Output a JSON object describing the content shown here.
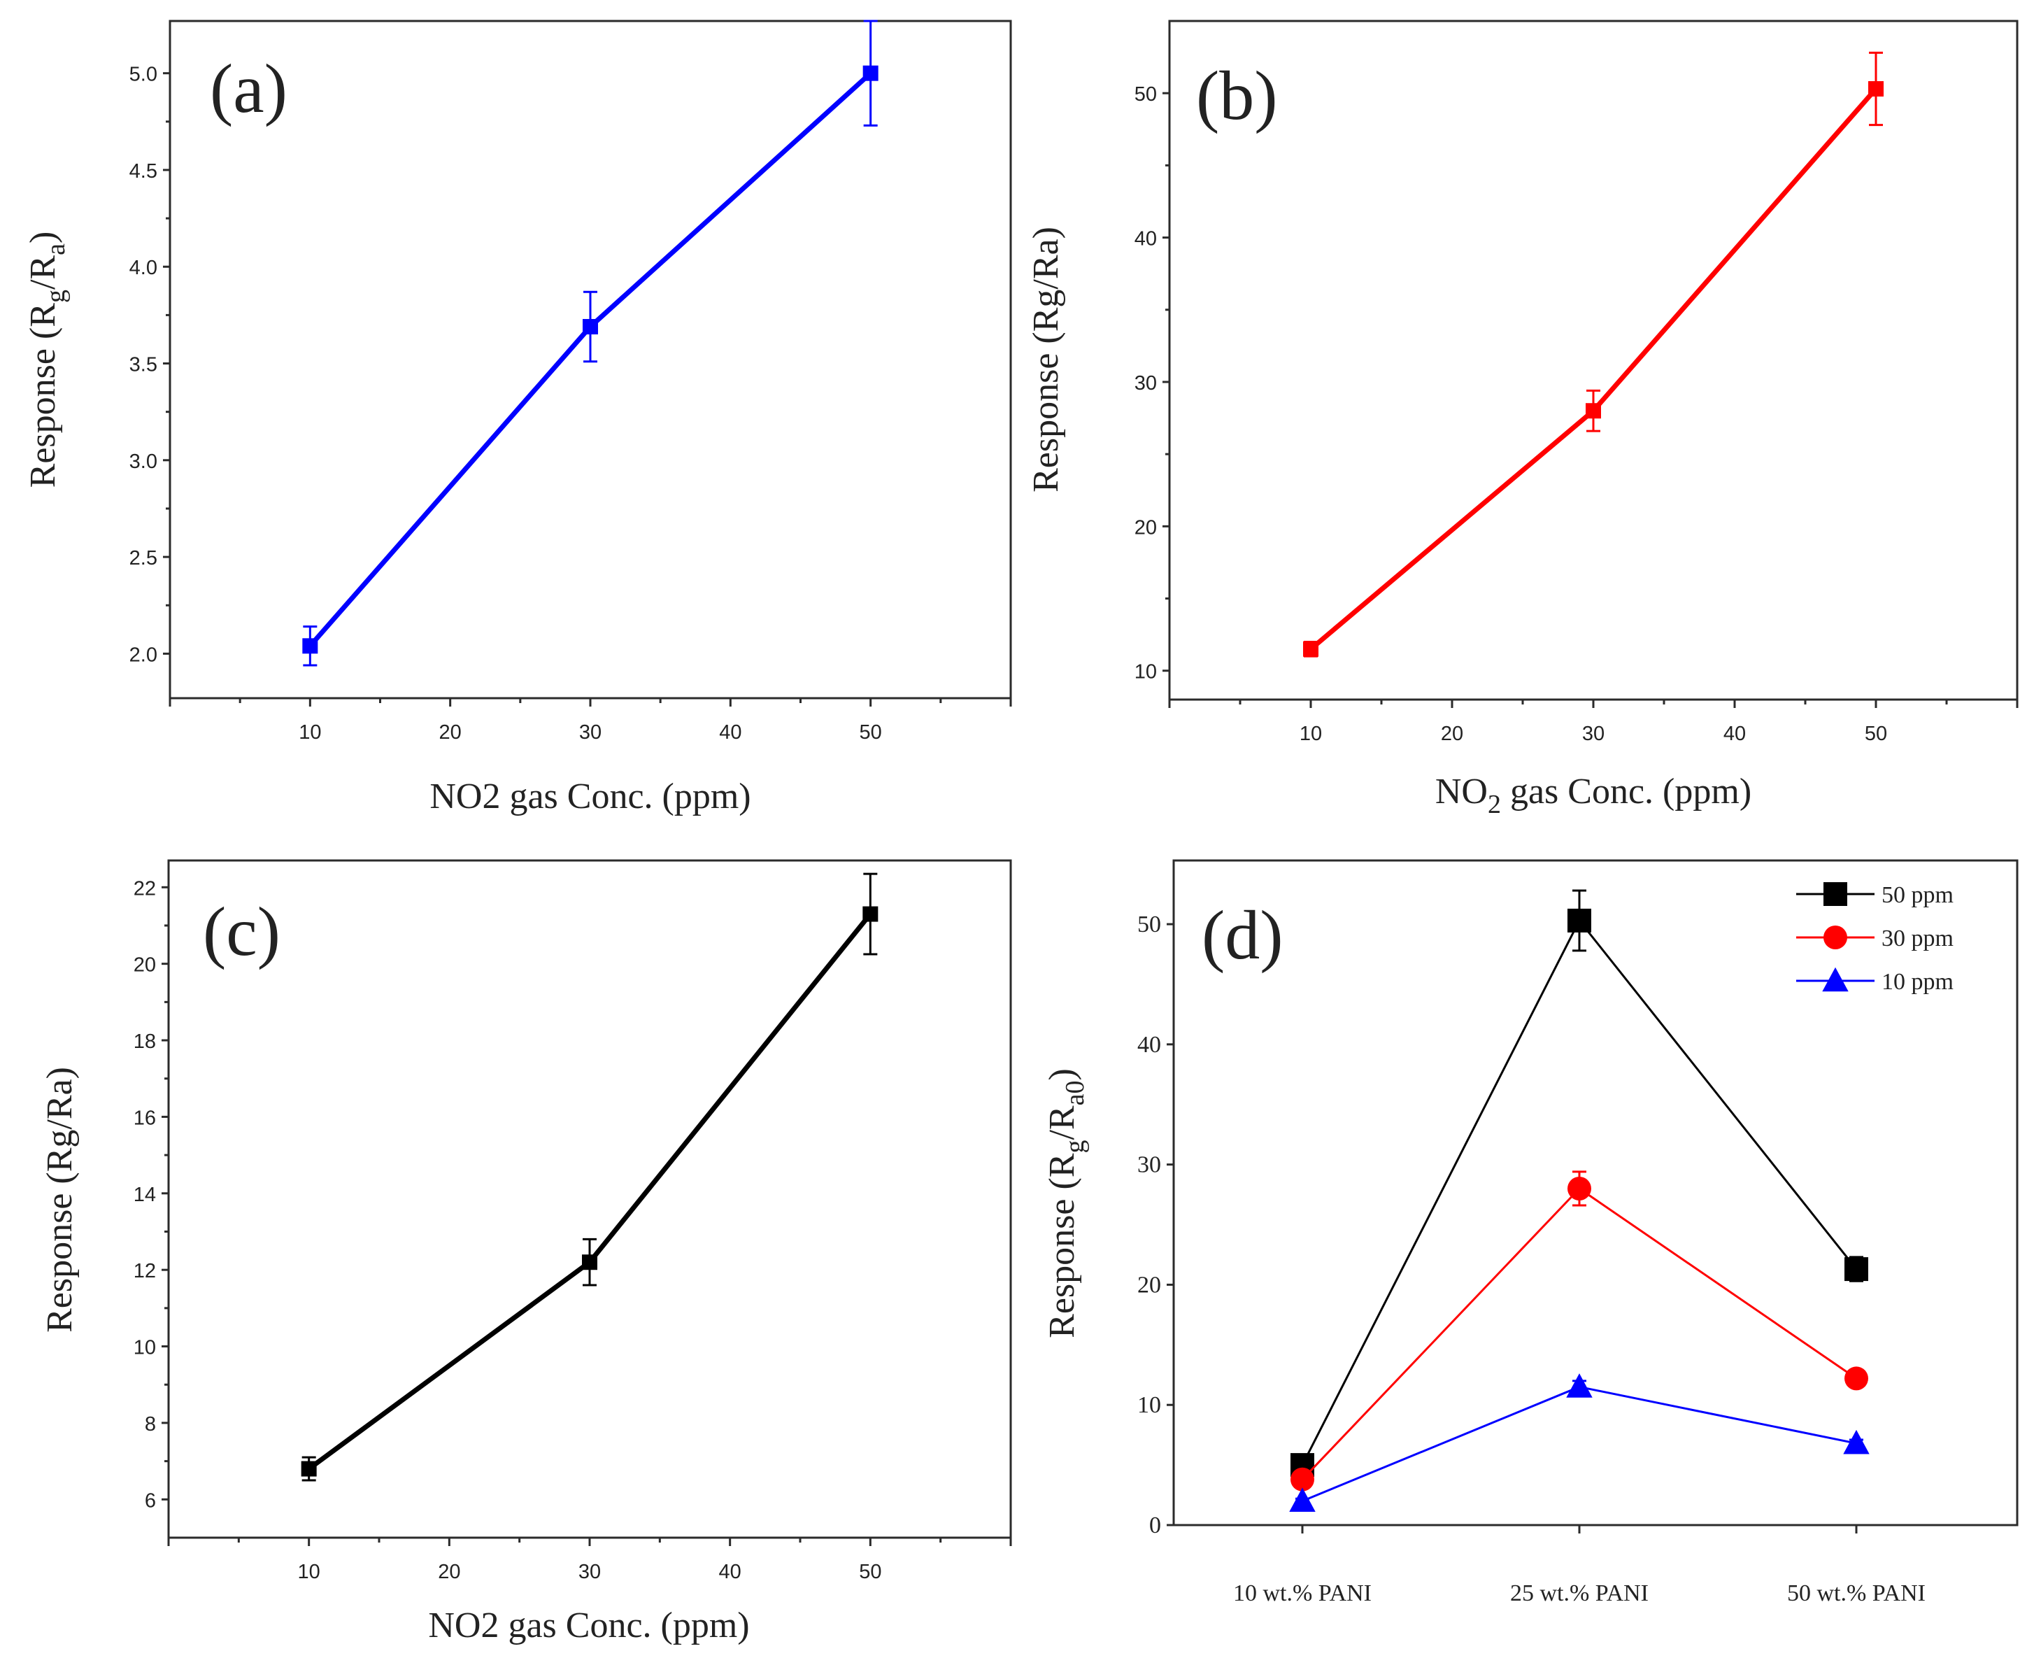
{
  "chart_data": [
    {
      "type": "line",
      "panel": "(a)",
      "x": [
        10,
        30,
        50
      ],
      "series": [
        {
          "name": "Response",
          "values": [
            2.04,
            3.69,
            5.0
          ],
          "errors": [
            0.1,
            0.18,
            0.27
          ],
          "color": "#0000ff",
          "marker": "square"
        }
      ],
      "xlabel": "NO2 gas Conc. (ppm)",
      "ylabel": "Response (R",
      "ylabel_sub1": "g",
      "ylabel_mid": "/R",
      "ylabel_sub2": "a",
      "ylabel_end": ")",
      "xlim": [
        0,
        60
      ],
      "ylim": [
        1.77,
        5.27
      ],
      "xticks": [
        "10",
        "20",
        "30",
        "40",
        "50"
      ],
      "xtick_values": [
        10,
        20,
        30,
        40,
        50
      ],
      "yticks": [
        "2.0",
        "2.5",
        "3.0",
        "3.5",
        "4.0",
        "4.5",
        "5.0"
      ],
      "ytick_values": [
        2.0,
        2.5,
        3.0,
        3.5,
        4.0,
        4.5,
        5.0
      ]
    },
    {
      "type": "line",
      "panel": "(b)",
      "x": [
        10,
        30,
        50
      ],
      "series": [
        {
          "name": "Response",
          "values": [
            11.5,
            28.0,
            50.3
          ],
          "errors": [
            0.5,
            1.4,
            2.5
          ],
          "color": "#ff0000",
          "marker": "square"
        }
      ],
      "xlabel": "NO",
      "xlabel_sub": "2",
      "xlabel_end": " gas Conc. (ppm)",
      "ylabel": "Response (Rg/Ra)",
      "xlim": [
        0,
        60
      ],
      "ylim": [
        8.0,
        55.0
      ],
      "xticks": [
        "10",
        "20",
        "30",
        "40",
        "50"
      ],
      "xtick_values": [
        10,
        20,
        30,
        40,
        50
      ],
      "yticks": [
        "10",
        "20",
        "30",
        "40",
        "50"
      ],
      "ytick_values": [
        10,
        20,
        30,
        40,
        50
      ]
    },
    {
      "type": "line",
      "panel": "(c)",
      "x": [
        10,
        30,
        50
      ],
      "series": [
        {
          "name": "Response",
          "values": [
            6.8,
            12.2,
            21.3
          ],
          "errors": [
            0.3,
            0.6,
            1.05
          ],
          "color": "#000000",
          "marker": "square"
        }
      ],
      "xlabel": "NO2 gas Conc. (ppm)",
      "ylabel": "Response (Rg/Ra)",
      "xlim": [
        0,
        60
      ],
      "ylim": [
        5.0,
        22.7
      ],
      "xticks": [
        "10",
        "20",
        "30",
        "40",
        "50"
      ],
      "xtick_values": [
        10,
        20,
        30,
        40,
        50
      ],
      "yticks": [
        "6",
        "8",
        "10",
        "12",
        "14",
        "16",
        "18",
        "20",
        "22"
      ],
      "ytick_values": [
        6,
        8,
        10,
        12,
        14,
        16,
        18,
        20,
        22
      ]
    },
    {
      "type": "line",
      "panel": "(d)",
      "categories": [
        "10 wt.% PANI",
        "25 wt.% PANI",
        "50 wt.% PANI"
      ],
      "series": [
        {
          "name": "50 ppm",
          "values": [
            5.0,
            50.3,
            21.3
          ],
          "errors": [
            0.3,
            2.5,
            1.0
          ],
          "color": "#000000",
          "marker": "square"
        },
        {
          "name": "30 ppm",
          "values": [
            3.8,
            28.0,
            12.2
          ],
          "errors": [
            0.3,
            1.4,
            0.6
          ],
          "color": "#ff0000",
          "marker": "circle"
        },
        {
          "name": "10 ppm",
          "values": [
            2.0,
            11.5,
            6.8
          ],
          "errors": [
            0.2,
            0.5,
            0.3
          ],
          "color": "#0000ff",
          "marker": "triangle"
        }
      ],
      "ylabel": "Response (R",
      "ylabel_sub1": "g",
      "ylabel_mid": "/R",
      "ylabel_sub2": "a0",
      "ylabel_end": ")",
      "ylim": [
        0,
        55.3
      ],
      "yticks": [
        "0",
        "10",
        "20",
        "30",
        "40",
        "50"
      ],
      "ytick_values": [
        0,
        10,
        20,
        30,
        40,
        50
      ],
      "legend": [
        "50 ppm",
        "30 ppm",
        "10 ppm"
      ],
      "legend_position": "top-right"
    }
  ]
}
